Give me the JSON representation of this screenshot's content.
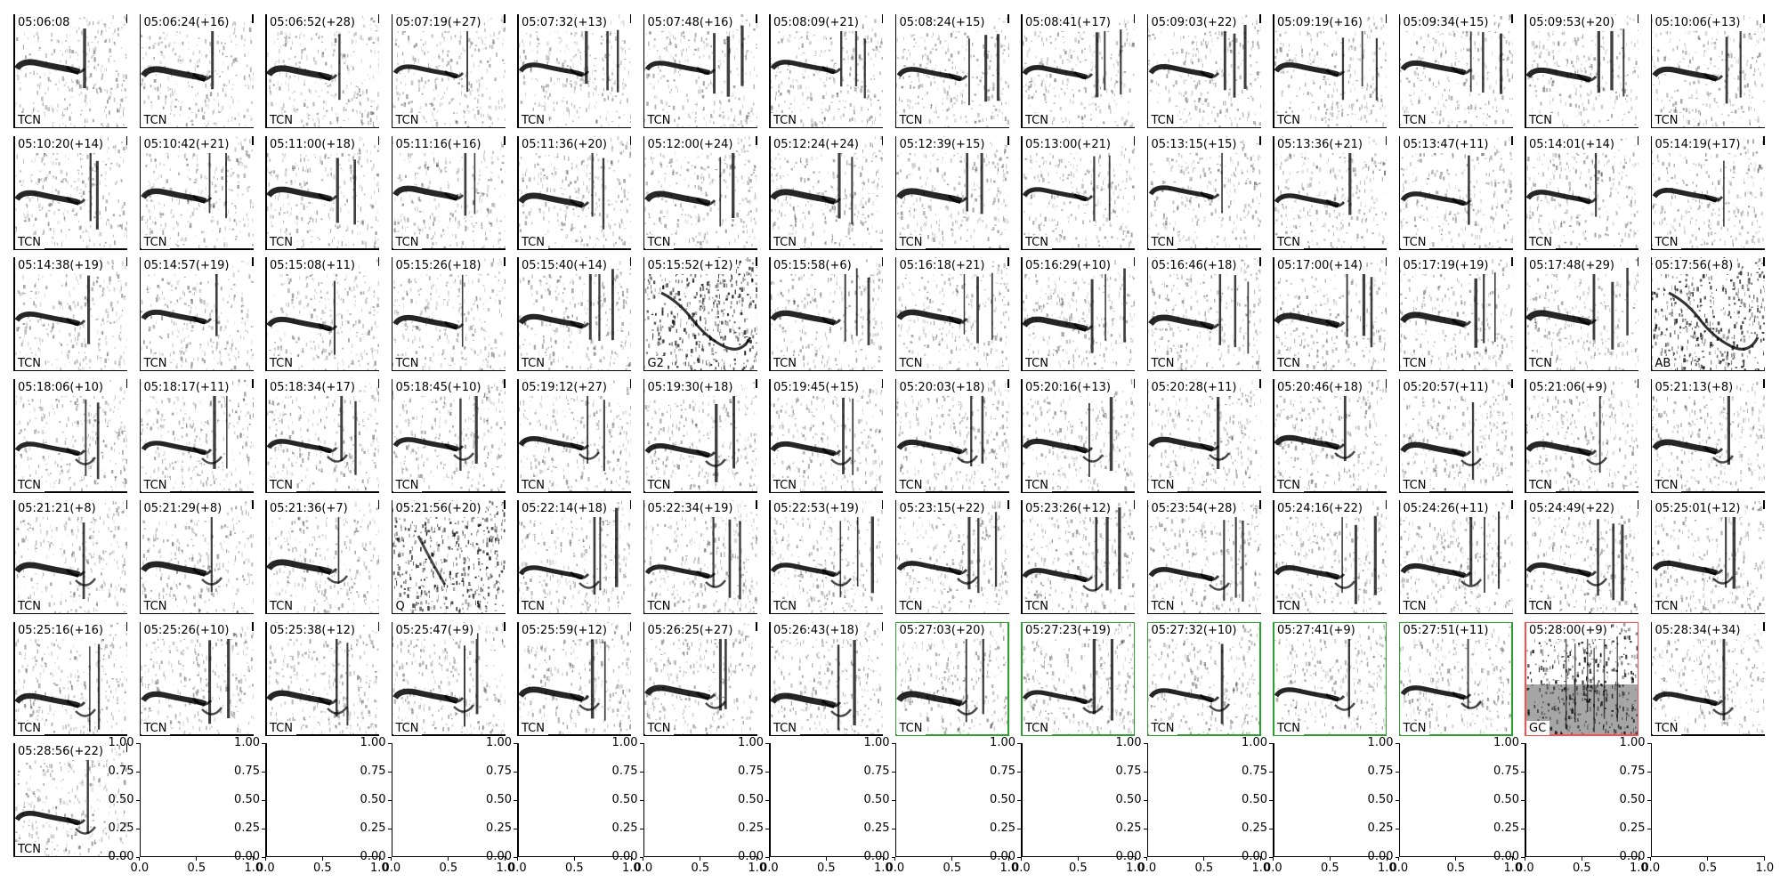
{
  "chart_data": {
    "type": "spectrogram-grid",
    "panels": [
      {
        "time": "05:06:08",
        "label": "TCN"
      },
      {
        "time": "05:06:24(+16)",
        "label": "TCN"
      },
      {
        "time": "05:06:52(+28)",
        "label": "TCN"
      },
      {
        "time": "05:07:19(+27)",
        "label": "TCN"
      },
      {
        "time": "05:07:32(+13)",
        "label": "TCN"
      },
      {
        "time": "05:07:48(+16)",
        "label": "TCN"
      },
      {
        "time": "05:08:09(+21)",
        "label": "TCN"
      },
      {
        "time": "05:08:24(+15)",
        "label": "TCN"
      },
      {
        "time": "05:08:41(+17)",
        "label": "TCN"
      },
      {
        "time": "05:09:03(+22)",
        "label": "TCN"
      },
      {
        "time": "05:09:19(+16)",
        "label": "TCN"
      },
      {
        "time": "05:09:34(+15)",
        "label": "TCN"
      },
      {
        "time": "05:09:53(+20)",
        "label": "TCN"
      },
      {
        "time": "05:10:06(+13)",
        "label": "TCN"
      },
      {
        "time": "05:10:20(+14)",
        "label": "TCN"
      },
      {
        "time": "05:10:42(+21)",
        "label": "TCN"
      },
      {
        "time": "05:11:00(+18)",
        "label": "TCN"
      },
      {
        "time": "05:11:16(+16)",
        "label": "TCN"
      },
      {
        "time": "05:11:36(+20)",
        "label": "TCN"
      },
      {
        "time": "05:12:00(+24)",
        "label": "TCN"
      },
      {
        "time": "05:12:24(+24)",
        "label": "TCN"
      },
      {
        "time": "05:12:39(+15)",
        "label": "TCN"
      },
      {
        "time": "05:13:00(+21)",
        "label": "TCN"
      },
      {
        "time": "05:13:15(+15)",
        "label": "TCN"
      },
      {
        "time": "05:13:36(+21)",
        "label": "TCN"
      },
      {
        "time": "05:13:47(+11)",
        "label": "TCN"
      },
      {
        "time": "05:14:01(+14)",
        "label": "TCN"
      },
      {
        "time": "05:14:19(+17)",
        "label": "TCN"
      },
      {
        "time": "05:14:38(+19)",
        "label": "TCN"
      },
      {
        "time": "05:14:57(+19)",
        "label": "TCN"
      },
      {
        "time": "05:15:08(+11)",
        "label": "TCN"
      },
      {
        "time": "05:15:26(+18)",
        "label": "TCN"
      },
      {
        "time": "05:15:40(+14)",
        "label": "TCN"
      },
      {
        "time": "05:15:52(+12)",
        "label": "G2"
      },
      {
        "time": "05:15:58(+6)",
        "label": "TCN"
      },
      {
        "time": "05:16:18(+21)",
        "label": "TCN"
      },
      {
        "time": "05:16:29(+10)",
        "label": "TCN"
      },
      {
        "time": "05:16:46(+18)",
        "label": "TCN"
      },
      {
        "time": "05:17:00(+14)",
        "label": "TCN"
      },
      {
        "time": "05:17:19(+19)",
        "label": "TCN"
      },
      {
        "time": "05:17:48(+29)",
        "label": "TCN"
      },
      {
        "time": "05:17:56(+8)",
        "label": "AB"
      },
      {
        "time": "05:18:06(+10)",
        "label": "TCN"
      },
      {
        "time": "05:18:17(+11)",
        "label": "TCN"
      },
      {
        "time": "05:18:34(+17)",
        "label": "TCN"
      },
      {
        "time": "05:18:45(+10)",
        "label": "TCN"
      },
      {
        "time": "05:19:12(+27)",
        "label": "TCN"
      },
      {
        "time": "05:19:30(+18)",
        "label": "TCN"
      },
      {
        "time": "05:19:45(+15)",
        "label": "TCN"
      },
      {
        "time": "05:20:03(+18)",
        "label": "TCN"
      },
      {
        "time": "05:20:16(+13)",
        "label": "TCN"
      },
      {
        "time": "05:20:28(+11)",
        "label": "TCN"
      },
      {
        "time": "05:20:46(+18)",
        "label": "TCN"
      },
      {
        "time": "05:20:57(+11)",
        "label": "TCN"
      },
      {
        "time": "05:21:06(+9)",
        "label": "TCN"
      },
      {
        "time": "05:21:13(+8)",
        "label": "TCN"
      },
      {
        "time": "05:21:21(+8)",
        "label": "TCN"
      },
      {
        "time": "05:21:29(+8)",
        "label": "TCN"
      },
      {
        "time": "05:21:36(+7)",
        "label": "TCN"
      },
      {
        "time": "05:21:56(+20)",
        "label": "Q"
      },
      {
        "time": "05:22:14(+18)",
        "label": "TCN"
      },
      {
        "time": "05:22:34(+19)",
        "label": "TCN"
      },
      {
        "time": "05:22:53(+19)",
        "label": "TCN"
      },
      {
        "time": "05:23:15(+22)",
        "label": "TCN"
      },
      {
        "time": "05:23:26(+12)",
        "label": "TCN"
      },
      {
        "time": "05:23:54(+28)",
        "label": "TCN"
      },
      {
        "time": "05:24:16(+22)",
        "label": "TCN"
      },
      {
        "time": "05:24:26(+11)",
        "label": "TCN"
      },
      {
        "time": "05:24:49(+22)",
        "label": "TCN"
      },
      {
        "time": "05:25:01(+12)",
        "label": "TCN"
      },
      {
        "time": "05:25:16(+16)",
        "label": "TCN"
      },
      {
        "time": "05:25:26(+10)",
        "label": "TCN"
      },
      {
        "time": "05:25:38(+12)",
        "label": "TCN"
      },
      {
        "time": "05:25:47(+9)",
        "label": "TCN"
      },
      {
        "time": "05:25:59(+12)",
        "label": "TCN"
      },
      {
        "time": "05:26:25(+27)",
        "label": "TCN"
      },
      {
        "time": "05:26:43(+18)",
        "label": "TCN"
      },
      {
        "time": "05:27:03(+20)",
        "label": "TCN",
        "frame": "#2ca02c"
      },
      {
        "time": "05:27:23(+19)",
        "label": "TCN",
        "frame": "#2ca02c"
      },
      {
        "time": "05:27:32(+10)",
        "label": "TCN",
        "frame": "#2ca02c"
      },
      {
        "time": "05:27:41(+9)",
        "label": "TCN",
        "frame": "#2ca02c"
      },
      {
        "time": "05:27:51(+11)",
        "label": "TCN",
        "frame": "#2ca02c"
      },
      {
        "time": "05:28:00(+9)",
        "label": "GC",
        "frame": "#ff4d4d"
      },
      {
        "time": "05:28:34(+34)",
        "label": "TCN"
      },
      {
        "time": "05:28:56(+22)",
        "label": "TCN"
      }
    ],
    "empty_axes": {
      "count": 13,
      "x_ticks": [
        "0.0",
        "0.5",
        "1.0"
      ],
      "y_ticks": [
        "0.00",
        "0.25",
        "0.50",
        "0.75",
        "1.00"
      ],
      "xlim": [
        0,
        1
      ],
      "ylim": [
        0,
        1
      ]
    }
  }
}
